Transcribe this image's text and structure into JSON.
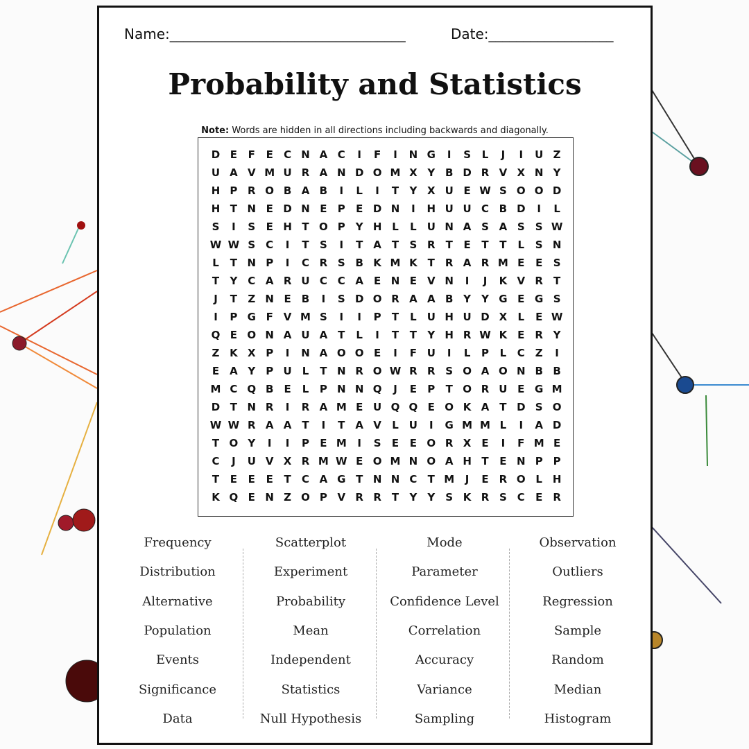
{
  "header": {
    "name": "Name:__________________________________",
    "date": "Date:__________________"
  },
  "title": "Probability and Statistics",
  "note": {
    "label": "Note:",
    "text": "Words are hidden in all directions including backwards and diagonally."
  },
  "grid": {
    "rows": [
      [
        "D",
        "E",
        "F",
        "E",
        "C",
        "N",
        "A",
        "C",
        "I",
        "F",
        "I",
        "N",
        "G",
        "I",
        "S",
        "L",
        "J",
        "I",
        "U",
        "Z"
      ],
      [
        "U",
        "A",
        "V",
        "M",
        "U",
        "R",
        "A",
        "N",
        "D",
        "O",
        "M",
        "X",
        "Y",
        "B",
        "D",
        "R",
        "V",
        "X",
        "N",
        "Y"
      ],
      [
        "H",
        "P",
        "R",
        "O",
        "B",
        "A",
        "B",
        "I",
        "L",
        "I",
        "T",
        "Y",
        "X",
        "U",
        "E",
        "W",
        "S",
        "O",
        "O",
        "D"
      ],
      [
        "H",
        "T",
        "N",
        "E",
        "D",
        "N",
        "E",
        "P",
        "E",
        "D",
        "N",
        "I",
        "H",
        "U",
        "U",
        "C",
        "B",
        "D",
        "I",
        "L"
      ],
      [
        "S",
        "I",
        "S",
        "E",
        "H",
        "T",
        "O",
        "P",
        "Y",
        "H",
        "L",
        "L",
        "U",
        "N",
        "A",
        "S",
        "A",
        "S",
        "S",
        "W"
      ],
      [
        "W",
        "W",
        "S",
        "C",
        "I",
        "T",
        "S",
        "I",
        "T",
        "A",
        "T",
        "S",
        "R",
        "T",
        "E",
        "T",
        "T",
        "L",
        "S",
        "N"
      ],
      [
        "L",
        "T",
        "N",
        "P",
        "I",
        "C",
        "R",
        "S",
        "B",
        "K",
        "M",
        "K",
        "T",
        "R",
        "A",
        "R",
        "M",
        "E",
        "E",
        "S"
      ],
      [
        "T",
        "Y",
        "C",
        "A",
        "R",
        "U",
        "C",
        "C",
        "A",
        "E",
        "N",
        "E",
        "V",
        "N",
        "I",
        "J",
        "K",
        "V",
        "R",
        "T"
      ],
      [
        "J",
        "T",
        "Z",
        "N",
        "E",
        "B",
        "I",
        "S",
        "D",
        "O",
        "R",
        "A",
        "A",
        "B",
        "Y",
        "Y",
        "G",
        "E",
        "G",
        "S"
      ],
      [
        "I",
        "P",
        "G",
        "F",
        "V",
        "M",
        "S",
        "I",
        "I",
        "P",
        "T",
        "L",
        "U",
        "H",
        "U",
        "D",
        "X",
        "L",
        "E",
        "W"
      ],
      [
        "Q",
        "E",
        "O",
        "N",
        "A",
        "U",
        "A",
        "T",
        "L",
        "I",
        "T",
        "T",
        "Y",
        "H",
        "R",
        "W",
        "K",
        "E",
        "R",
        "Y"
      ],
      [
        "Z",
        "K",
        "X",
        "P",
        "I",
        "N",
        "A",
        "O",
        "O",
        "E",
        "I",
        "F",
        "U",
        "I",
        "L",
        "P",
        "L",
        "C",
        "Z",
        "I"
      ],
      [
        "E",
        "A",
        "Y",
        "P",
        "U",
        "L",
        "T",
        "N",
        "R",
        "O",
        "W",
        "R",
        "R",
        "S",
        "O",
        "A",
        "O",
        "N",
        "B",
        "B"
      ],
      [
        "M",
        "C",
        "Q",
        "B",
        "E",
        "L",
        "P",
        "N",
        "N",
        "Q",
        "J",
        "E",
        "P",
        "T",
        "O",
        "R",
        "U",
        "E",
        "G",
        "M"
      ],
      [
        "D",
        "T",
        "N",
        "R",
        "I",
        "R",
        "A",
        "M",
        "E",
        "U",
        "Q",
        "Q",
        "E",
        "O",
        "K",
        "A",
        "T",
        "D",
        "S",
        "O"
      ],
      [
        "W",
        "W",
        "R",
        "A",
        "A",
        "T",
        "I",
        "T",
        "A",
        "V",
        "L",
        "U",
        "I",
        "G",
        "M",
        "M",
        "L",
        "I",
        "A",
        "D"
      ],
      [
        "T",
        "O",
        "Y",
        "I",
        "I",
        "P",
        "E",
        "M",
        "I",
        "S",
        "E",
        "E",
        "O",
        "R",
        "X",
        "E",
        "I",
        "F",
        "M",
        "E"
      ],
      [
        "C",
        "J",
        "U",
        "V",
        "X",
        "R",
        "M",
        "W",
        "E",
        "O",
        "M",
        "N",
        "O",
        "A",
        "H",
        "T",
        "E",
        "N",
        "P",
        "P"
      ],
      [
        "T",
        "E",
        "E",
        "E",
        "T",
        "C",
        "A",
        "G",
        "T",
        "N",
        "N",
        "C",
        "T",
        "M",
        "J",
        "E",
        "R",
        "O",
        "L",
        "H"
      ],
      [
        "K",
        "Q",
        "E",
        "N",
        "Z",
        "O",
        "P",
        "V",
        "R",
        "R",
        "T",
        "Y",
        "Y",
        "S",
        "K",
        "R",
        "S",
        "C",
        "E",
        "R"
      ]
    ]
  },
  "words": [
    [
      "Frequency",
      "Distribution",
      "Alternative",
      "Population",
      "Events",
      "Significance",
      "Data"
    ],
    [
      "Scatterplot",
      "Experiment",
      "Probability",
      "Mean",
      "Independent",
      "Statistics",
      "Null Hypothesis"
    ],
    [
      "Mode",
      "Parameter",
      "Confidence Level",
      "Correlation",
      "Accuracy",
      "Variance",
      "Sampling"
    ],
    [
      "Observation",
      "Outliers",
      "Regression",
      "Sample",
      "Random",
      "Median",
      "Histogram"
    ]
  ]
}
